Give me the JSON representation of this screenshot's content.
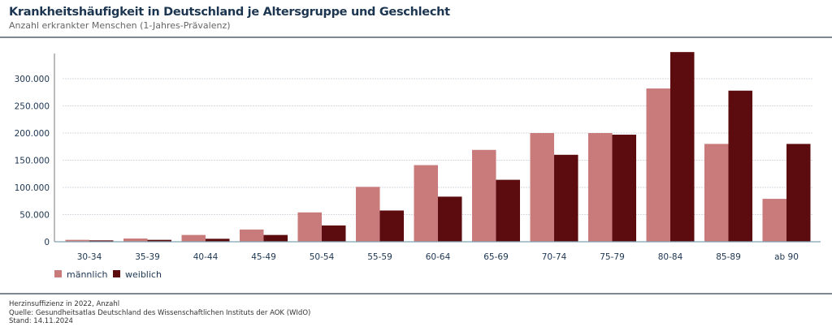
{
  "header": {
    "title": "Krankheitshäufigkeit in Deutschland je Altersgruppe und Geschlecht",
    "subtitle": "Anzahl erkrankter Menschen (1-Jahres-Prävalenz)"
  },
  "footer": {
    "note": "Herzinsuffizienz in 2022, Anzahl",
    "source": "Quelle: Gesundheitsatlas Deutschland des Wissenschaftlichen Instituts der AOK (WIdO)",
    "date": "Stand: 14.11.2024"
  },
  "chart_data": {
    "type": "bar",
    "categories": [
      "30-34",
      "35-39",
      "40-44",
      "45-49",
      "50-54",
      "55-59",
      "60-64",
      "65-69",
      "70-74",
      "75-79",
      "80-84",
      "85-89",
      "ab 90"
    ],
    "series": [
      {
        "name": "männlich",
        "color": "#c97a7a",
        "values": [
          3500,
          6000,
          12500,
          22500,
          54000,
          101000,
          141000,
          169000,
          200000,
          200000,
          282000,
          180000,
          79000
        ]
      },
      {
        "name": "weiblich",
        "color": "#5c0b0e",
        "values": [
          2500,
          3500,
          5500,
          12500,
          30000,
          57500,
          83000,
          114000,
          160000,
          197000,
          349000,
          278000,
          180000
        ]
      }
    ],
    "yticks": [
      0,
      50000,
      100000,
      150000,
      200000,
      250000,
      300000
    ],
    "ytick_labels": [
      "0",
      "50.000",
      "100.000",
      "150.000",
      "200.000",
      "250.000",
      "300.000"
    ],
    "ylim": [
      0,
      350000
    ],
    "grid": true,
    "legend": "bottom-left",
    "title": "",
    "xlabel": "",
    "ylabel": ""
  }
}
